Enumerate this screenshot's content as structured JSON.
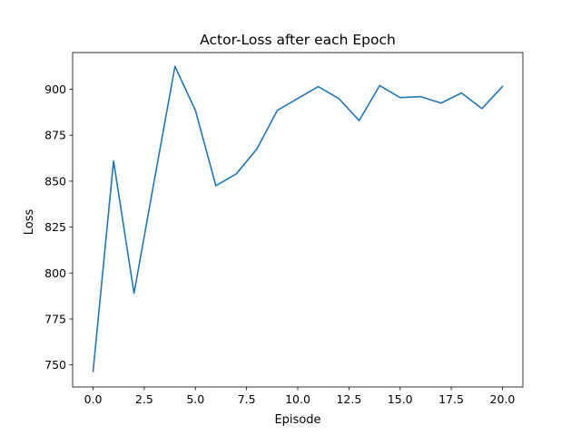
{
  "chart_data": {
    "type": "line",
    "title": "Actor-Loss after each Epoch",
    "xlabel": "Episode",
    "ylabel": "Loss",
    "xlim": [
      -1.0,
      21.0
    ],
    "ylim": [
      738.0,
      920.0
    ],
    "xticks": [
      0.0,
      2.5,
      5.0,
      7.5,
      10.0,
      12.5,
      15.0,
      17.5,
      20.0
    ],
    "xtick_labels": [
      "0.0",
      "2.5",
      "5.0",
      "7.5",
      "10.0",
      "12.5",
      "15.0",
      "17.5",
      "20.0"
    ],
    "yticks": [
      750,
      775,
      800,
      825,
      850,
      875,
      900
    ],
    "ytick_labels": [
      "750",
      "775",
      "800",
      "825",
      "850",
      "875",
      "900"
    ],
    "grid": false,
    "series": [
      {
        "color": "#1f77b4",
        "x": [
          0,
          1,
          2,
          3,
          4,
          5,
          6,
          7,
          8,
          9,
          10,
          11,
          12,
          13,
          14,
          15,
          16,
          17,
          18,
          19,
          20
        ],
        "y": [
          746.5,
          861.0,
          789.0,
          851.0,
          912.5,
          888.5,
          847.5,
          854.0,
          867.5,
          888.5,
          895.0,
          901.5,
          895.0,
          883.0,
          902.0,
          895.5,
          896.0,
          892.5,
          898.0,
          889.5,
          901.5
        ]
      }
    ]
  }
}
